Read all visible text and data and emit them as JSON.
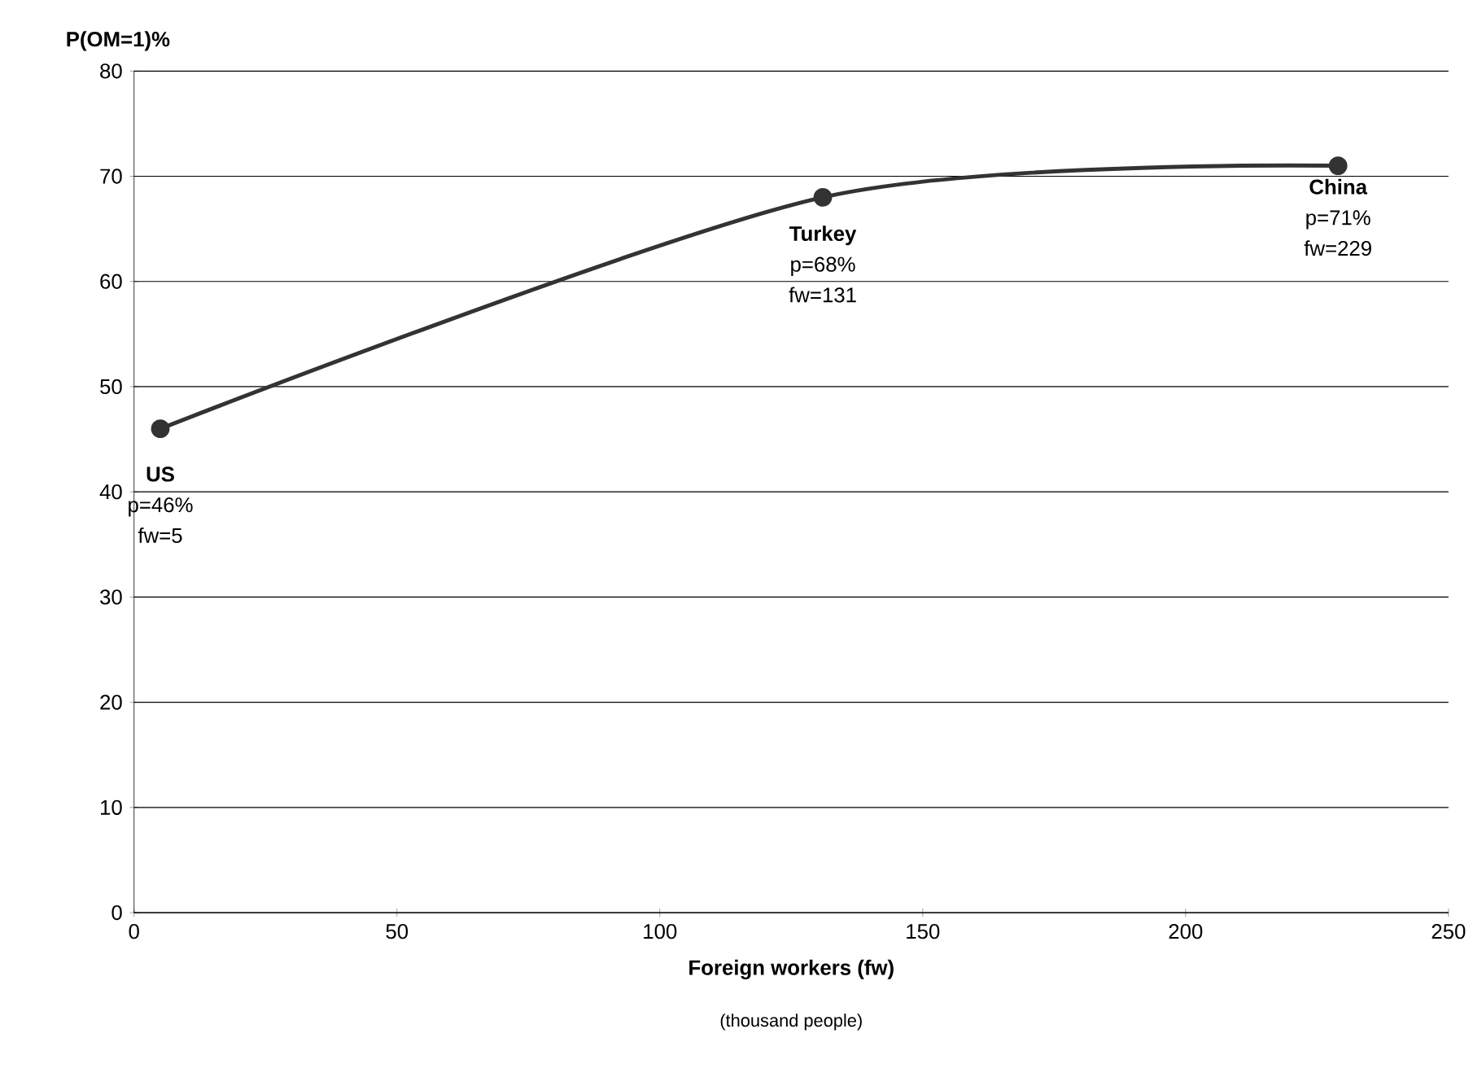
{
  "chart_data": {
    "type": "line",
    "ylabel": "P(OM=1)%",
    "xlabel": "Foreign workers (fw)",
    "x": [
      5,
      131,
      229
    ],
    "series": [
      {
        "color": "#333333",
        "values": [
          46,
          68,
          71
        ]
      }
    ],
    "xlim": [
      0,
      250
    ],
    "xticks": [
      0,
      50,
      100,
      150,
      200,
      250
    ],
    "ylim": [
      0,
      80
    ],
    "yticks": [
      0,
      10,
      20,
      30,
      40,
      50,
      60,
      70,
      80
    ],
    "grid": "y",
    "marker": "circle",
    "line_style": "solid",
    "annotations": [
      {
        "text": "**US** p=46% fw=5",
        "x": 5,
        "y": 46
      },
      {
        "text": "**Turkey** p=68% fw=131",
        "x": 131,
        "y": 68
      },
      {
        "text": "**China** p=71% fw=229",
        "x": 229,
        "y": 71
      },
      "(thousand people)"
    ]
  }
}
